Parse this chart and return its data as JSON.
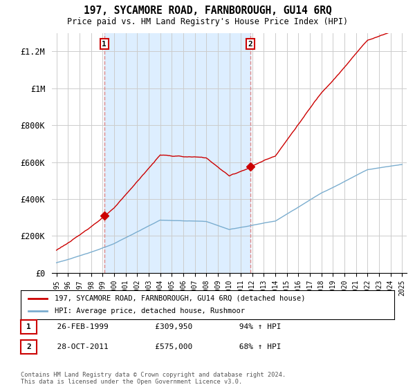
{
  "title": "197, SYCAMORE ROAD, FARNBOROUGH, GU14 6RQ",
  "subtitle": "Price paid vs. HM Land Registry's House Price Index (HPI)",
  "ylim": [
    0,
    1300000
  ],
  "yticks": [
    0,
    200000,
    400000,
    600000,
    800000,
    1000000,
    1200000
  ],
  "ytick_labels": [
    "£0",
    "£200K",
    "£400K",
    "£600K",
    "£800K",
    "£1M",
    "£1.2M"
  ],
  "red_color": "#cc0000",
  "blue_color": "#7aadcf",
  "dashed_color": "#dd8888",
  "background_color": "#ffffff",
  "shade_color": "#ddeeff",
  "grid_color": "#cccccc",
  "legend_label_red": "197, SYCAMORE ROAD, FARNBOROUGH, GU14 6RQ (detached house)",
  "legend_label_blue": "HPI: Average price, detached house, Rushmoor",
  "purchase1_year": 1999.15,
  "purchase1_price": 309950,
  "purchase1_label": "1",
  "purchase2_year": 2011.82,
  "purchase2_price": 575000,
  "purchase2_label": "2",
  "footer": "Contains HM Land Registry data © Crown copyright and database right 2024.\nThis data is licensed under the Open Government Licence v3.0.",
  "table_rows": [
    {
      "num": "1",
      "date": "26-FEB-1999",
      "price": "£309,950",
      "hpi": "94% ↑ HPI"
    },
    {
      "num": "2",
      "date": "28-OCT-2011",
      "price": "£575,000",
      "hpi": "68% ↑ HPI"
    }
  ]
}
